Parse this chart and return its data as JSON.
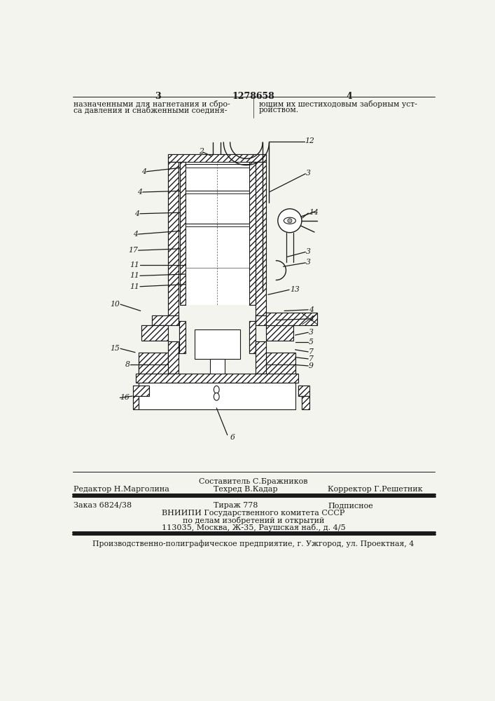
{
  "page_number_left": "3",
  "patent_number": "1278658",
  "page_number_right": "4",
  "header_text_left_1": "назначенными для нагнетания и сбро-",
  "header_text_left_2": "са давления и снабженными соединя-",
  "header_text_right_1": "ющим их шестиходовым заборным уст-",
  "header_text_right_2": "ройством.",
  "footer_col1_row1": "Составитель С.Бражников",
  "footer_col0_row2": "Редактор Н.Марголина",
  "footer_col1_row2": "Техред В.Кадар",
  "footer_col2_row2": "Корректор Г.Решетник",
  "footer_col0_row3": "Заказ 6824/38",
  "footer_col1_row3": "Тираж 778",
  "footer_col2_row3": "Подписное",
  "footer_row4": "ВНИИПИ Государственного комитета СССР",
  "footer_row5": "по делам изобретений и открытий",
  "footer_row6": "113035, Москва, Ж-35, Раушская наб., д. 4/5",
  "footer_bottom": "Производственно-полиграфическое предприятие, г. Ужгород, ул. Проектная, 4",
  "bg_color": "#f4f4ee",
  "lc": "#1a1a1a"
}
